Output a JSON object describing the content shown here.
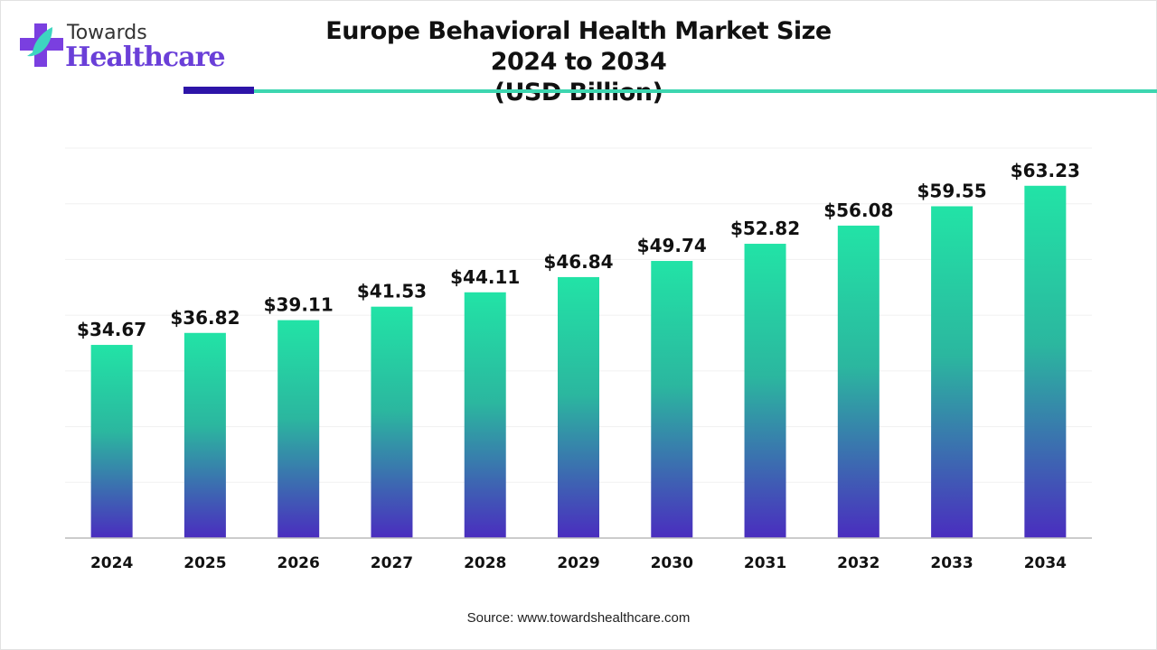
{
  "logo": {
    "line1": "Towards",
    "line2": "Healthcare"
  },
  "title": {
    "line1": "Europe Behavioral Health Market Size 2024 to 2034",
    "line2": "(USD Billion)"
  },
  "source": "Source: www.towardshealthcare.com",
  "colors": {
    "bar_top": "#22e3a6",
    "bar_bottom": "#4a2dbf",
    "accent_dark": "#2d14a8",
    "accent_teal": "#3dd6b0"
  },
  "chart_data": {
    "type": "bar",
    "title": "Europe Behavioral Health Market Size 2024 to 2034 (USD Billion)",
    "categories": [
      "2024",
      "2025",
      "2026",
      "2027",
      "2028",
      "2029",
      "2030",
      "2031",
      "2032",
      "2033",
      "2034"
    ],
    "values": [
      34.67,
      36.82,
      39.11,
      41.53,
      44.11,
      46.84,
      49.74,
      52.82,
      56.08,
      59.55,
      63.23
    ],
    "labels": [
      "$34.67",
      "$36.82",
      "$39.11",
      "$41.53",
      "$44.11",
      "$46.84",
      "$49.74",
      "$52.82",
      "$56.08",
      "$59.55",
      "$63.23"
    ],
    "xlabel": "",
    "ylabel": "",
    "ylim": [
      0,
      70
    ],
    "grid": true,
    "legend": "none"
  }
}
